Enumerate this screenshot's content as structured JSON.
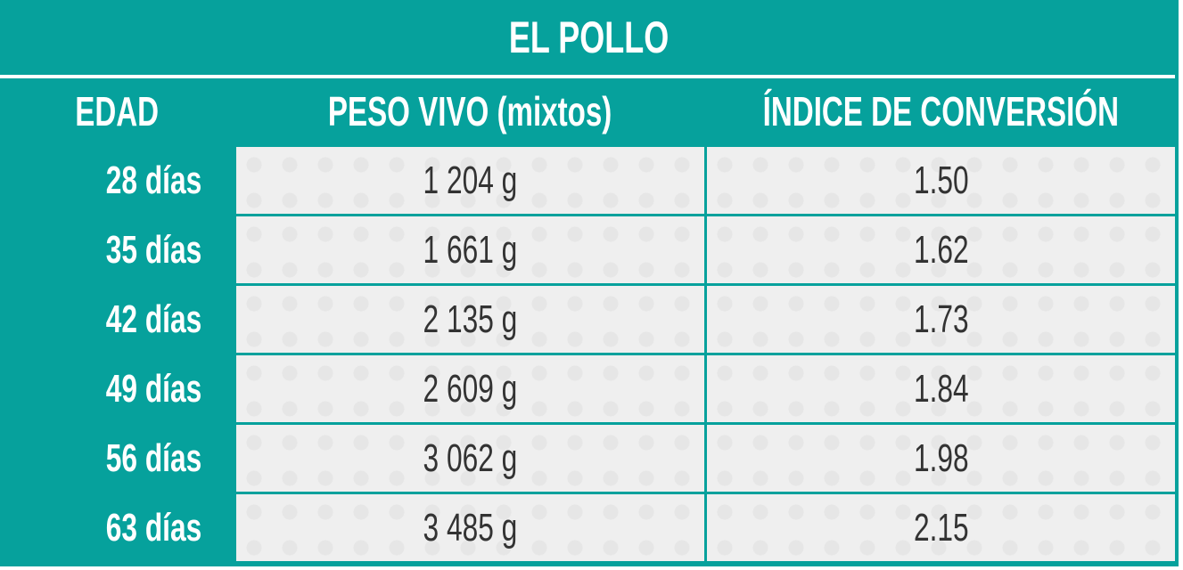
{
  "title": "EL POLLO",
  "table": {
    "header": [
      "EDAD",
      "PESO VIVO (mixtos)",
      "ÍNDICE DE CONVERSIÓN"
    ],
    "rows": [
      [
        "28 días",
        "1 204 g",
        "1.50"
      ],
      [
        "35 días",
        "1 661 g",
        "1.62"
      ],
      [
        "42 días",
        "2 135 g",
        "1.73"
      ],
      [
        "49 días",
        "2 609 g",
        "1.84"
      ],
      [
        "56 días",
        "3 062 g",
        "1.98"
      ],
      [
        "63 días",
        "3 485 g",
        "2.15"
      ]
    ]
  }
}
